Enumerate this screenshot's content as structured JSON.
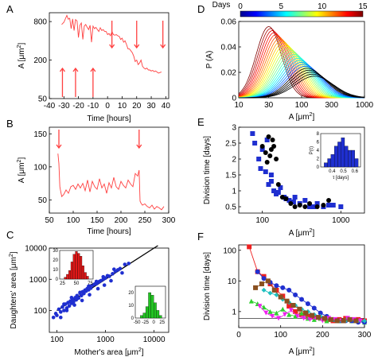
{
  "panel_letters": [
    "A",
    "B",
    "C",
    "D",
    "E",
    "F"
  ],
  "chart_data": [
    {
      "panel": "A",
      "type": "line",
      "xlabel": "Time [hours]",
      "ylabel": "A [μm²]",
      "ylabel_main": "A [μm",
      "ylabel_sup": "2",
      "ylabel_end": "]",
      "xlim": [
        -40,
        42
      ],
      "ylim": [
        50,
        1100
      ],
      "yscale": "log",
      "xticks": [
        -40,
        -30,
        -20,
        -10,
        0,
        10,
        20,
        30,
        40
      ],
      "xtick_labels": [
        "-40",
        "-30",
        "-20",
        "-10",
        "0",
        "10",
        "20",
        "30",
        "40"
      ],
      "yticks": [
        50,
        200,
        800
      ],
      "ytick_labels": [
        "50",
        "200",
        "800"
      ],
      "color": "#ff4040",
      "x": [
        -31.5,
        -30,
        -28,
        -27,
        -26,
        -25,
        -24,
        -23,
        -22,
        -21,
        -20,
        -19,
        -18,
        -17,
        -16,
        -15,
        -14,
        -13,
        -12,
        -11,
        -10,
        -9,
        -8,
        -7,
        -6,
        -5,
        -4,
        -3,
        -2,
        -1,
        0,
        1,
        2,
        3,
        4,
        5,
        6,
        7,
        8,
        9,
        10,
        11,
        12,
        13,
        14,
        15,
        16,
        17,
        18,
        19,
        20,
        21,
        22,
        23,
        24,
        25,
        26,
        27,
        28,
        29,
        30,
        31,
        32,
        33,
        34,
        35,
        36,
        37
      ],
      "y": [
        720,
        780,
        1000,
        870,
        900,
        620,
        880,
        580,
        860,
        820,
        450,
        700,
        760,
        420,
        680,
        720,
        650,
        600,
        700,
        380,
        680,
        620,
        650,
        600,
        560,
        640,
        580,
        600,
        560,
        560,
        500,
        520,
        480,
        560,
        500,
        490,
        500,
        480,
        470,
        420,
        440,
        380,
        400,
        350,
        300,
        300,
        280,
        260,
        230,
        190,
        200,
        170,
        180,
        200,
        160,
        150,
        145,
        150,
        140,
        140,
        135,
        138,
        132,
        135,
        130,
        125,
        128,
        130
      ],
      "arrows_up_x": [
        -31,
        -22,
        -10
      ],
      "arrows_down_x": [
        3,
        20,
        38
      ]
    },
    {
      "panel": "B",
      "type": "line",
      "xlabel": "Time [hours]",
      "ylabel": "A [μm²]",
      "ylabel_main": "A [μm",
      "ylabel_sup": "2",
      "ylabel_end": "]",
      "xlim": [
        50,
        300
      ],
      "ylim": [
        30,
        160
      ],
      "xticks": [
        50,
        100,
        150,
        200,
        250,
        300
      ],
      "xtick_labels": [
        "50",
        "100",
        "150",
        "200",
        "250",
        "300"
      ],
      "yticks": [
        50,
        100,
        150
      ],
      "ytick_labels": [
        "50",
        "100",
        "150"
      ],
      "color": "#ff4040",
      "x": [
        68,
        70,
        72,
        74,
        76,
        80,
        85,
        90,
        95,
        100,
        105,
        110,
        115,
        120,
        125,
        130,
        135,
        140,
        145,
        150,
        155,
        160,
        165,
        170,
        175,
        180,
        185,
        190,
        195,
        200,
        205,
        210,
        215,
        220,
        225,
        230,
        235,
        238,
        240,
        242,
        245,
        250,
        255,
        260,
        265,
        270,
        275,
        280,
        285,
        290
      ],
      "y": [
        120,
        105,
        70,
        62,
        55,
        58,
        65,
        60,
        70,
        72,
        66,
        74,
        68,
        75,
        64,
        80,
        62,
        78,
        70,
        66,
        82,
        68,
        74,
        60,
        76,
        68,
        84,
        70,
        66,
        78,
        72,
        68,
        80,
        74,
        70,
        90,
        86,
        95,
        48,
        45,
        42,
        44,
        40,
        38,
        42,
        36,
        40,
        38,
        35,
        40
      ],
      "arrows_down_x": [
        70,
        238
      ]
    },
    {
      "panel": "C",
      "type": "scatter",
      "xlabel": "Mother's area [μm²]",
      "xlabel_main": "Mother's area [μm",
      "xlabel_sup": "2",
      "xlabel_end": "]",
      "ylabel": "Daughters' area [μm²]",
      "ylabel_main": "Daughters' area [μm",
      "ylabel_sup": "2",
      "ylabel_end": "]",
      "xscale": "log",
      "yscale": "log",
      "xlim": [
        70,
        20000
      ],
      "ylim": [
        20,
        10000
      ],
      "xticks": [
        100,
        1000,
        10000
      ],
      "xtick_labels": [
        "100",
        "1000",
        "10000"
      ],
      "yticks": [
        100,
        1000,
        10000
      ],
      "ytick_labels": [
        "100",
        "1000",
        "10000"
      ],
      "identity_line": true,
      "color": "#1f2fd0",
      "x": [
        85,
        95,
        100,
        110,
        120,
        130,
        140,
        150,
        160,
        170,
        180,
        190,
        200,
        210,
        220,
        240,
        250,
        260,
        280,
        300,
        320,
        340,
        360,
        380,
        400,
        420,
        450,
        480,
        500,
        550,
        600,
        650,
        700,
        750,
        800,
        900,
        1000,
        1100,
        1200,
        1400,
        1600,
        1800,
        2000,
        2500,
        3000,
        120,
        160,
        230,
        330,
        470,
        700,
        950,
        1300,
        2200,
        140,
        200,
        300,
        450,
        650,
        900,
        1500
      ],
      "y": [
        60,
        80,
        70,
        110,
        90,
        130,
        100,
        160,
        120,
        180,
        140,
        200,
        170,
        230,
        190,
        260,
        220,
        300,
        250,
        360,
        300,
        400,
        350,
        450,
        420,
        500,
        460,
        600,
        520,
        650,
        700,
        720,
        800,
        850,
        900,
        1000,
        1100,
        1300,
        1250,
        1500,
        1800,
        2000,
        2200,
        3000,
        3200,
        60,
        100,
        150,
        210,
        320,
        500,
        650,
        900,
        1600,
        160,
        260,
        380,
        600,
        850,
        1200,
        2100
      ],
      "inset_red": {
        "type": "bar",
        "color": "#e01818",
        "xlim": [
          20,
          80
        ],
        "ylim": [
          0,
          30
        ],
        "xticks": [
          25,
          50,
          75
        ],
        "xtick_labels": [
          "25",
          "50",
          "75"
        ],
        "yticks": [
          0,
          10,
          20,
          30
        ],
        "ytick_labels": [
          "0",
          "10",
          "20",
          "30"
        ],
        "bin_edges": [
          28,
          32,
          36,
          40,
          44,
          48,
          52,
          56,
          60,
          64,
          68,
          72
        ],
        "counts": [
          2,
          5,
          9,
          18,
          26,
          29,
          27,
          24,
          14,
          7,
          3
        ]
      },
      "inset_green": {
        "type": "bar",
        "color": "#22c322",
        "xlim": [
          -55,
          35
        ],
        "ylim": [
          0,
          25
        ],
        "xticks": [
          -50,
          -25,
          0,
          25
        ],
        "xtick_labels": [
          "-50",
          "-25",
          "0",
          "25"
        ],
        "yticks": [
          0,
          10,
          20
        ],
        "ytick_labels": [
          "0",
          "10",
          "20"
        ],
        "bin_edges": [
          -40,
          -32,
          -24,
          -16,
          -8,
          0,
          8,
          16,
          24
        ],
        "counts": [
          2,
          4,
          9,
          20,
          18,
          12,
          6,
          2
        ]
      }
    },
    {
      "panel": "D",
      "type": "line",
      "xlabel": "A [μm²]",
      "xlabel_main": "A [μm",
      "xlabel_sup": "2",
      "xlabel_end": "]",
      "ylabel": "P (A)",
      "xscale": "log",
      "xlim": [
        10,
        1000
      ],
      "ylim": [
        0,
        0.06
      ],
      "xticks": [
        10,
        30,
        100,
        300,
        1000
      ],
      "xtick_labels": [
        "10",
        "30",
        "100",
        "300",
        "1000"
      ],
      "yticks": [
        0,
        0.02,
        0.04,
        0.06
      ],
      "ytick_labels": [
        "0",
        "0.02",
        "0.04",
        "0.06"
      ],
      "colorbar": {
        "label": "Days",
        "range": [
          0,
          15
        ],
        "ticks": [
          0,
          5,
          10,
          15
        ],
        "tick_labels": [
          "0",
          "5",
          "10",
          "15"
        ]
      },
      "series_family": {
        "count": 26,
        "day_range": [
          0,
          15
        ],
        "peak_x_range": [
          30,
          160
        ],
        "peak_y_range": [
          0.056,
          0.017
        ],
        "log_width_range": [
          0.2,
          0.3
        ]
      }
    },
    {
      "panel": "E",
      "type": "scatter",
      "xlabel": "A [μm²]",
      "xlabel_main": "A [μm",
      "xlabel_sup": "2",
      "xlabel_end": "]",
      "ylabel": "Division time [days]",
      "xscale": "log",
      "xlim": [
        50,
        2000
      ],
      "ylim": [
        0.3,
        3
      ],
      "xticks": [
        100,
        1000
      ],
      "xtick_labels": [
        "100",
        "1000"
      ],
      "yticks": [
        0.5,
        1,
        1.5,
        2,
        2.5,
        3
      ],
      "ytick_labels": [
        "0.5",
        "1",
        "1.5",
        "2",
        "2.5",
        "3"
      ],
      "series": [
        {
          "marker": "square",
          "color": "#1f2fd0",
          "x": [
            75,
            80,
            90,
            100,
            110,
            120,
            130,
            150,
            170,
            190,
            220,
            260,
            300,
            350,
            400,
            500,
            600,
            800,
            1000,
            130,
            160,
            95,
            115,
            140,
            200,
            250,
            450,
            700
          ],
          "y": [
            2.8,
            2.5,
            2.0,
            2.3,
            1.6,
            1.2,
            1.5,
            0.9,
            1.1,
            0.8,
            0.7,
            0.8,
            0.6,
            0.7,
            0.5,
            0.6,
            0.5,
            0.55,
            0.5,
            1.3,
            0.95,
            1.7,
            2.6,
            1.0,
            0.75,
            0.65,
            0.5,
            0.55
          ]
        },
        {
          "marker": "circle",
          "color": "#000000",
          "x": [
            100,
            110,
            120,
            130,
            140,
            150,
            160,
            180,
            200,
            230,
            260,
            300,
            350,
            400,
            500,
            600,
            700,
            115,
            125,
            135
          ],
          "y": [
            2.4,
            2.2,
            2.7,
            2.3,
            2.4,
            2.0,
            1.2,
            0.8,
            0.75,
            0.6,
            0.5,
            0.55,
            0.5,
            0.6,
            0.5,
            0.55,
            0.7,
            1.9,
            2.1,
            2.6
          ]
        }
      ],
      "inset": {
        "type": "bar",
        "color": "#1f2fd0",
        "xlabel": "τ [days]",
        "ylabel": "P(τ)",
        "xlim": [
          0.3,
          0.65
        ],
        "ylim": [
          0,
          8
        ],
        "xticks": [
          0.4,
          0.5,
          0.6
        ],
        "xtick_labels": [
          "0.4",
          "0.5",
          "0.6"
        ],
        "yticks": [
          0,
          2,
          4,
          6,
          8
        ],
        "ytick_labels": [
          "0",
          "2",
          "4",
          "6",
          "8"
        ],
        "bin_edges": [
          0.33,
          0.36,
          0.39,
          0.42,
          0.45,
          0.48,
          0.51,
          0.54,
          0.57,
          0.6,
          0.63
        ],
        "counts": [
          1,
          2,
          3,
          5,
          6,
          7,
          5,
          4,
          4,
          2
        ]
      }
    },
    {
      "panel": "F",
      "type": "line",
      "xlabel": "A [μm²]",
      "xlabel_main": "A [μm",
      "xlabel_sup": "2",
      "xlabel_end": "]",
      "ylabel": "Division time [days]",
      "yscale": "log",
      "xlim": [
        0,
        300
      ],
      "ylim": [
        0.3,
        150
      ],
      "xticks": [
        0,
        100,
        200,
        300
      ],
      "xtick_labels": [
        "0",
        "100",
        "200",
        "300"
      ],
      "yticks": [
        1,
        10,
        100
      ],
      "ytick_labels": [
        "1",
        "10",
        "100"
      ],
      "hline": 0.6,
      "series": [
        {
          "marker": "square",
          "color": "#ee2020",
          "x": [
            25,
            45,
            60,
            75,
            90,
            105,
            120,
            135,
            150,
            165,
            180,
            195,
            210,
            225,
            240,
            255,
            270,
            285,
            300
          ],
          "y": [
            130,
            20,
            14,
            8,
            5,
            3.2,
            1.5,
            1.0,
            0.8,
            0.7,
            0.65,
            0.6,
            0.55,
            0.5,
            0.55,
            0.6,
            0.5,
            0.55,
            0.5
          ]
        },
        {
          "marker": "triangle",
          "color": "#30d030",
          "x": [
            30,
            45,
            60,
            75,
            90,
            105,
            120,
            135,
            150,
            165,
            180,
            195,
            210,
            225,
            240,
            255,
            270,
            285,
            300
          ],
          "y": [
            2.2,
            1.8,
            1.4,
            1.0,
            0.9,
            1.2,
            0.8,
            0.7,
            0.9,
            0.6,
            0.55,
            0.6,
            0.5,
            0.55,
            0.5,
            0.55,
            0.5,
            0.5,
            0.45
          ]
        },
        {
          "marker": "circle",
          "color": "#2030d0",
          "x": [
            45,
            60,
            75,
            90,
            105,
            120,
            135,
            150,
            165,
            180,
            195,
            210,
            225,
            240,
            255,
            270,
            285,
            300
          ],
          "y": [
            20,
            12,
            9,
            7,
            6,
            5,
            3.5,
            2.5,
            1.8,
            1.3,
            0.9,
            0.7,
            0.55,
            0.5,
            0.5,
            0.5,
            0.45,
            0.45
          ]
        },
        {
          "marker": "diamond",
          "color": "#20c0c0",
          "x": [
            60,
            75,
            90,
            105,
            120,
            135,
            150,
            165,
            180,
            195,
            210,
            225,
            240,
            255,
            270,
            285,
            300
          ],
          "y": [
            5,
            4,
            3.5,
            2.5,
            2.0,
            1.6,
            1.2,
            1.0,
            0.8,
            0.7,
            0.6,
            0.55,
            0.5,
            0.5,
            0.55,
            0.5,
            0.5
          ]
        },
        {
          "marker": "invtriangle",
          "color": "#ee20ee",
          "x": [
            50,
            65,
            80,
            95,
            110,
            125,
            140,
            155,
            170,
            185,
            200,
            215,
            230,
            245,
            260,
            275,
            290
          ],
          "y": [
            1.5,
            0.9,
            0.7,
            0.6,
            0.8,
            1.1,
            0.7,
            0.6,
            0.55,
            0.6,
            0.5,
            0.6,
            0.55,
            0.5,
            0.6,
            0.55,
            0.5
          ]
        },
        {
          "marker": "square",
          "color": "#8a5020",
          "x": [
            40,
            55,
            70,
            85,
            100,
            115,
            130,
            145,
            160,
            175,
            190,
            205,
            220,
            235,
            250,
            265,
            280
          ],
          "y": [
            6,
            8,
            10,
            5,
            3,
            2.2,
            1.6,
            1.2,
            0.9,
            0.75,
            0.65,
            0.6,
            0.55,
            0.5,
            0.5,
            0.55,
            0.5
          ]
        }
      ]
    }
  ]
}
